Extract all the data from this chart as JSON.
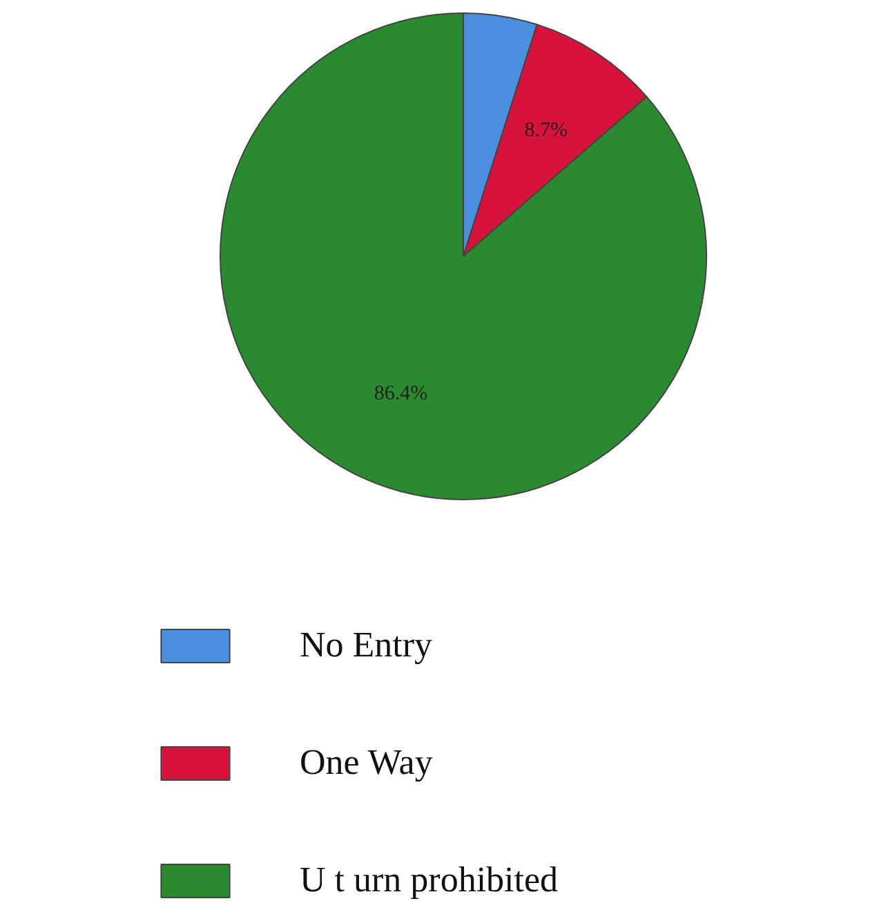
{
  "chart_data": {
    "type": "pie",
    "categories": [
      "No Entry",
      "One Way",
      "U t urn prohibited"
    ],
    "values": [
      4.9,
      8.7,
      86.4
    ],
    "colors": [
      "#4a8fe0",
      "#d8133b",
      "#2a8a2f"
    ],
    "value_labels": [
      null,
      "8.7%",
      "86.4%"
    ],
    "legend": "bottom"
  }
}
